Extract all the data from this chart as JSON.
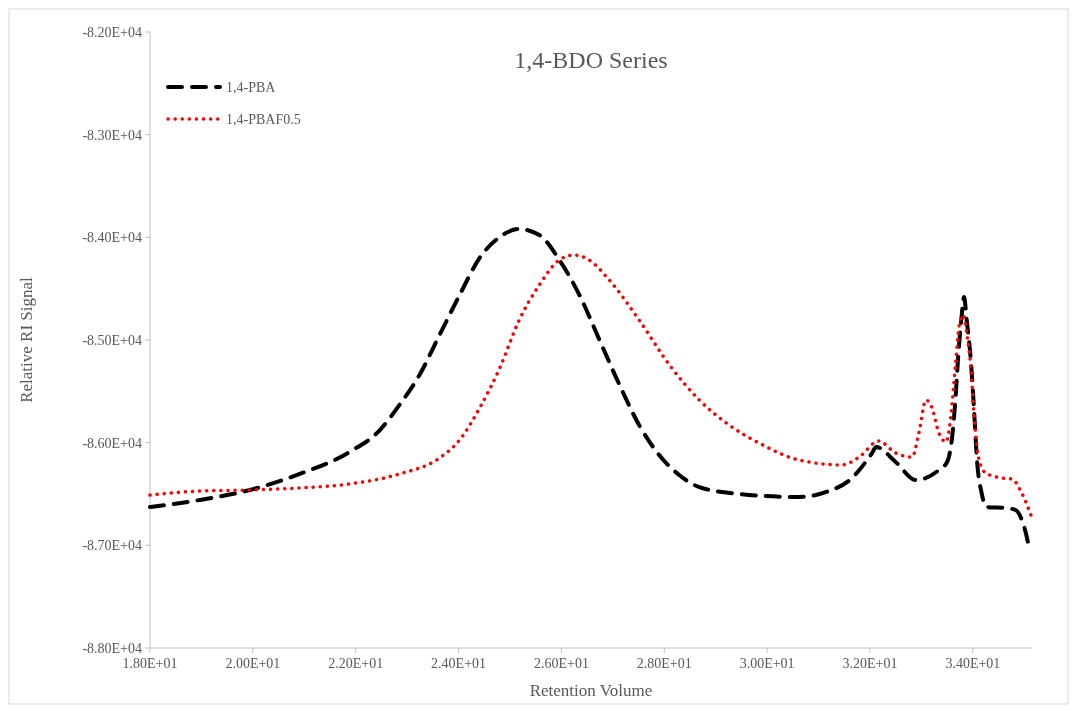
{
  "chart_data": {
    "type": "line",
    "title": "1,4-BDO Series",
    "xlabel": "Retention Volume",
    "ylabel": "Relative RI Signal",
    "xlim": [
      18,
      35.15
    ],
    "ylim": [
      -88000,
      -82000
    ],
    "xticks": [
      {
        "value": 18,
        "label": "1.80E+01"
      },
      {
        "value": 20,
        "label": "2.00E+01"
      },
      {
        "value": 22,
        "label": "2.20E+01"
      },
      {
        "value": 24,
        "label": "2.40E+01"
      },
      {
        "value": 26,
        "label": "2.60E+01"
      },
      {
        "value": 28,
        "label": "2.80E+01"
      },
      {
        "value": 30,
        "label": "3.00E+01"
      },
      {
        "value": 32,
        "label": "3.20E+01"
      },
      {
        "value": 34,
        "label": "3.40E+01"
      }
    ],
    "yticks": [
      {
        "value": -88000,
        "label": "-8.80E+04"
      },
      {
        "value": -87000,
        "label": "-8.70E+04"
      },
      {
        "value": -86000,
        "label": "-8.60E+04"
      },
      {
        "value": -85000,
        "label": "-8.50E+04"
      },
      {
        "value": -84000,
        "label": "-8.40E+04"
      },
      {
        "value": -83000,
        "label": "-8.30E+04"
      },
      {
        "value": -82000,
        "label": "-8.20E+04"
      }
    ],
    "grid": false,
    "legend": "top left",
    "marker": "none",
    "series": [
      {
        "name": "1,4-PBA",
        "color": "#000000",
        "line_style": "dashed",
        "x": [
          18,
          18.97,
          19.94,
          20.91,
          21.88,
          22.47,
          22.85,
          23.24,
          23.63,
          24.02,
          24.41,
          24.8,
          25.18,
          25.57,
          25.96,
          26.35,
          26.74,
          27.13,
          27.51,
          27.9,
          28.29,
          28.68,
          29.46,
          30.62,
          31.15,
          31.65,
          32.04,
          32.12,
          32.5,
          32.89,
          33.34,
          33.5,
          33.59,
          33.67,
          33.71,
          33.77,
          33.83,
          33.88,
          33.96,
          34.02,
          34.08,
          34.17,
          34.27,
          34.64,
          34.83,
          35.03,
          35.09
        ],
        "values": [
          -86627,
          -86558,
          -86461,
          -86305,
          -86091,
          -85877,
          -85633,
          -85341,
          -84951,
          -84562,
          -84201,
          -83997,
          -83919,
          -83977,
          -84221,
          -84562,
          -85000,
          -85438,
          -85828,
          -86120,
          -86315,
          -86432,
          -86500,
          -86529,
          -86480,
          -86344,
          -86101,
          -86042,
          -86188,
          -86364,
          -86266,
          -86188,
          -85974,
          -85516,
          -85195,
          -84834,
          -84581,
          -84805,
          -85195,
          -85653,
          -86169,
          -86490,
          -86627,
          -86636,
          -86656,
          -86880,
          -87016
        ]
      },
      {
        "name": "1,4-PBAF0.5",
        "color": "#ff0000",
        "line_style": "dotted",
        "x": [
          18,
          18.97,
          19.94,
          20.91,
          21.88,
          22.85,
          23.63,
          24.02,
          24.41,
          24.8,
          25.18,
          25.57,
          25.96,
          26.25,
          26.54,
          26.93,
          27.51,
          28.1,
          28.68,
          29.26,
          29.84,
          30.62,
          31.46,
          31.79,
          32.17,
          32.5,
          32.82,
          32.95,
          33.09,
          33.2,
          33.34,
          33.48,
          33.57,
          33.67,
          33.73,
          33.81,
          33.88,
          33.96,
          34.02,
          34.12,
          34.25,
          34.56,
          34.76,
          34.95,
          35.15
        ],
        "values": [
          -86510,
          -86471,
          -86461,
          -86441,
          -86402,
          -86305,
          -86149,
          -85974,
          -85662,
          -85273,
          -84805,
          -84464,
          -84221,
          -84172,
          -84221,
          -84416,
          -84805,
          -85243,
          -85584,
          -85828,
          -86003,
          -86169,
          -86217,
          -86140,
          -85984,
          -86101,
          -86140,
          -85906,
          -85584,
          -85653,
          -85906,
          -85993,
          -85750,
          -85195,
          -84873,
          -84756,
          -84932,
          -85263,
          -85711,
          -86169,
          -86295,
          -86344,
          -86354,
          -86490,
          -86734
        ]
      }
    ]
  }
}
